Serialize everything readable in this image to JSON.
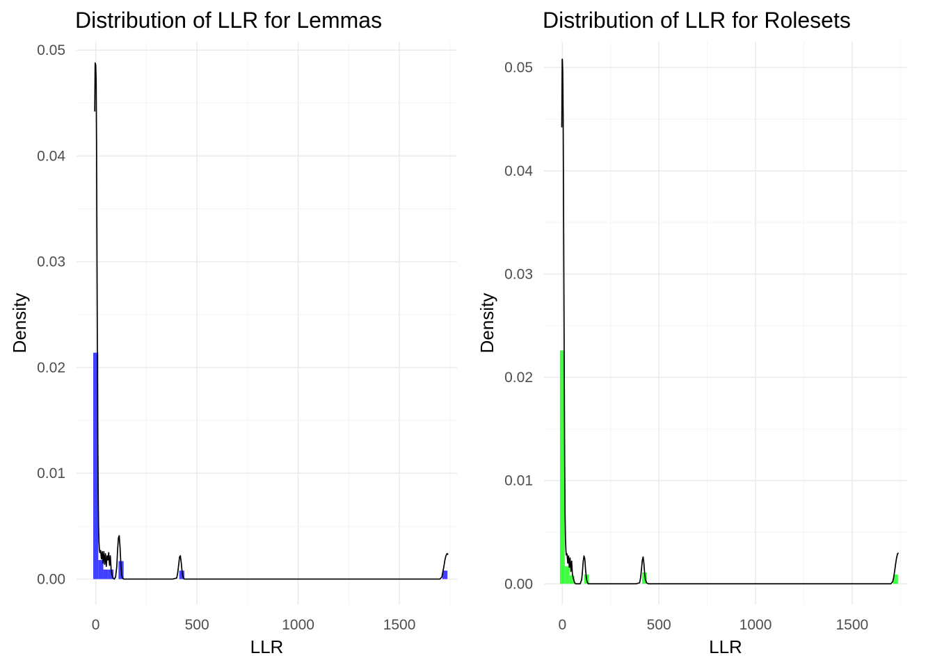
{
  "chart_data": [
    {
      "type": "histogram-density",
      "title": "Distribution of LLR for Lemmas",
      "xlabel": "LLR",
      "ylabel": "Density",
      "xlim": [
        -95,
        1785
      ],
      "ylim": [
        -0.0024,
        0.0508
      ],
      "x_ticks": [
        0,
        500,
        1000,
        1500
      ],
      "x_tick_labels": [
        "0",
        "500",
        "1000",
        "1500"
      ],
      "y_ticks": [
        0,
        0.01,
        0.02,
        0.03,
        0.04,
        0.05
      ],
      "y_tick_labels": [
        "0.00",
        "0.01",
        "0.02",
        "0.03",
        "0.04",
        "0.05"
      ],
      "grid": true,
      "bar_color": "#4040ff",
      "line_color": "#000000",
      "histogram": {
        "bin_width": 25,
        "bins": [
          {
            "x0": -12.5,
            "x1": 12.5,
            "density": 0.0214
          },
          {
            "x0": 12.5,
            "x1": 37.5,
            "density": 0.0018
          },
          {
            "x0": 37.5,
            "x1": 62.5,
            "density": 0.0009
          },
          {
            "x0": 62.5,
            "x1": 87.5,
            "density": 0.0009
          },
          {
            "x0": 112.5,
            "x1": 137.5,
            "density": 0.0017
          },
          {
            "x0": 412.5,
            "x1": 437.5,
            "density": 0.0008
          },
          {
            "x0": 1712.5,
            "x1": 1737.5,
            "density": 0.0008
          }
        ]
      },
      "density_curve": {
        "x": [
          -5,
          -3,
          0,
          2,
          4,
          6,
          8,
          10,
          12,
          14,
          16,
          18,
          20,
          24,
          28,
          32,
          36,
          40,
          44,
          48,
          52,
          56,
          60,
          64,
          68,
          72,
          76,
          80,
          86,
          92,
          98,
          104,
          108,
          112,
          116,
          120,
          124,
          128,
          132,
          138,
          150,
          200,
          300,
          380,
          400,
          405,
          410,
          414,
          418,
          422,
          426,
          430,
          436,
          445,
          500,
          800,
          1200,
          1600,
          1700,
          1710,
          1715,
          1720,
          1725,
          1730,
          1735,
          1738,
          1740
        ],
        "y": [
          0.0442,
          0.0488,
          0.0486,
          0.0472,
          0.0412,
          0.031,
          0.0218,
          0.014,
          0.0085,
          0.005,
          0.0035,
          0.0028,
          0.0025,
          0.0027,
          0.0019,
          0.0026,
          0.0015,
          0.0026,
          0.0014,
          0.0024,
          0.0012,
          0.0022,
          0.0018,
          0.0025,
          0.0013,
          0.0022,
          0.0009,
          0.0004,
          0.0001,
          0.0,
          0.0002,
          0.0012,
          0.0028,
          0.0039,
          0.0041,
          0.003,
          0.0014,
          0.0004,
          0.0001,
          0.0,
          0.0,
          0.0,
          0.0,
          0.0,
          0.0001,
          0.0006,
          0.0014,
          0.0021,
          0.0022,
          0.0016,
          0.0008,
          0.0003,
          0.0,
          0.0,
          0.0,
          0.0,
          0.0,
          0.0,
          0.0,
          0.0002,
          0.0007,
          0.0012,
          0.0018,
          0.0022,
          0.0024,
          0.0024,
          0.0023
        ]
      }
    },
    {
      "type": "histogram-density",
      "title": "Distribution of LLR for Rolesets",
      "xlabel": "LLR",
      "ylabel": "Density",
      "xlim": [
        -95,
        1785
      ],
      "ylim": [
        -0.002,
        0.0525
      ],
      "x_ticks": [
        0,
        500,
        1000,
        1500
      ],
      "x_tick_labels": [
        "0",
        "500",
        "1000",
        "1500"
      ],
      "y_ticks": [
        0,
        0.01,
        0.02,
        0.03,
        0.04,
        0.05
      ],
      "y_tick_labels": [
        "0.00",
        "0.01",
        "0.02",
        "0.03",
        "0.04",
        "0.05"
      ],
      "grid": true,
      "bar_color": "#40ff40",
      "line_color": "#000000",
      "histogram": {
        "bin_width": 25,
        "bins": [
          {
            "x0": -12.5,
            "x1": 12.5,
            "density": 0.0226
          },
          {
            "x0": 12.5,
            "x1": 37.5,
            "density": 0.0017
          },
          {
            "x0": 37.5,
            "x1": 62.5,
            "density": 0.0008
          },
          {
            "x0": 112.5,
            "x1": 137.5,
            "density": 0.0009
          },
          {
            "x0": 412.5,
            "x1": 437.5,
            "density": 0.0011
          },
          {
            "x0": 1712.5,
            "x1": 1737.5,
            "density": 0.0009
          }
        ]
      },
      "density_curve": {
        "x": [
          -3,
          -1,
          0,
          2,
          4,
          6,
          8,
          10,
          12,
          14,
          16,
          18,
          20,
          24,
          28,
          32,
          36,
          40,
          44,
          48,
          52,
          56,
          60,
          64,
          68,
          72,
          80,
          92,
          100,
          104,
          108,
          112,
          116,
          120,
          124,
          128,
          134,
          150,
          250,
          380,
          400,
          405,
          410,
          414,
          418,
          422,
          426,
          430,
          436,
          445,
          600,
          1000,
          1500,
          1700,
          1710,
          1715,
          1720,
          1725,
          1730,
          1735,
          1740
        ],
        "y": [
          0.0442,
          0.0508,
          0.0508,
          0.0496,
          0.0456,
          0.0375,
          0.0282,
          0.0198,
          0.0118,
          0.0068,
          0.0045,
          0.0034,
          0.0028,
          0.0029,
          0.002,
          0.0027,
          0.0016,
          0.0025,
          0.0012,
          0.0022,
          0.0009,
          0.0006,
          0.0003,
          0.0001,
          0.0,
          0.0,
          0.0,
          0.0,
          0.0004,
          0.0012,
          0.0022,
          0.0027,
          0.0024,
          0.0014,
          0.0006,
          0.0002,
          0.0,
          0.0,
          0.0,
          0.0,
          0.0001,
          0.0006,
          0.0015,
          0.0023,
          0.0026,
          0.002,
          0.001,
          0.0004,
          0.0001,
          0.0,
          0.0,
          0.0,
          0.0,
          0.0,
          0.0002,
          0.0006,
          0.0012,
          0.0019,
          0.0025,
          0.0029,
          0.003
        ]
      }
    }
  ]
}
